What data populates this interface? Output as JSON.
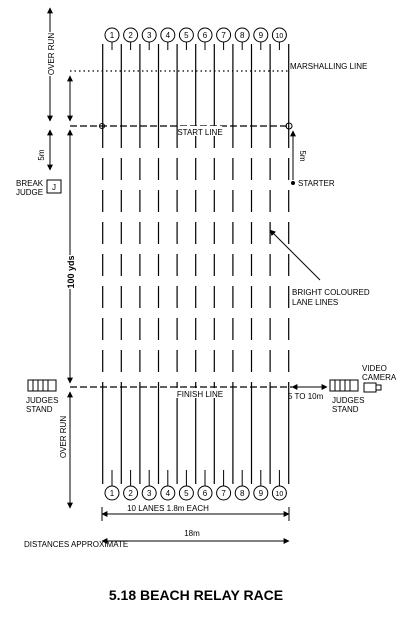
{
  "lanes": [
    "1",
    "2",
    "3",
    "4",
    "5",
    "6",
    "7",
    "8",
    "9",
    "10"
  ],
  "labels": {
    "over_run_top": "OVER RUN",
    "marshalling_line": "MARSHALLING LINE",
    "start_line": "START LINE",
    "five_m_left": "5m",
    "five_m_right": "5m",
    "starter": "STARTER",
    "break_judge_line1": "BREAK",
    "break_judge_line2": "JUDGE",
    "judge_box": "J",
    "hundred_yds": "100 yds",
    "bright_lines_line1": "BRIGHT COLOURED",
    "bright_lines_line2": "LANE LINES",
    "video_line1": "VIDEO",
    "video_line2": "CAMERA",
    "judges_left_line1": "JUDGES",
    "judges_left_line2": "STAND",
    "judges_right_line1": "JUDGES",
    "judges_right_line2": "STAND",
    "finish_line": "FINISH  LINE",
    "five_to_ten": "5 TO 10m",
    "over_run_bottom": "OVER RUN",
    "ten_lanes": "10 LANES 1.8m EACH",
    "eighteen_m": "18m",
    "distances": "DISTANCES APPROXIMATE",
    "title": "5.18 BEACH RELAY RACE"
  }
}
